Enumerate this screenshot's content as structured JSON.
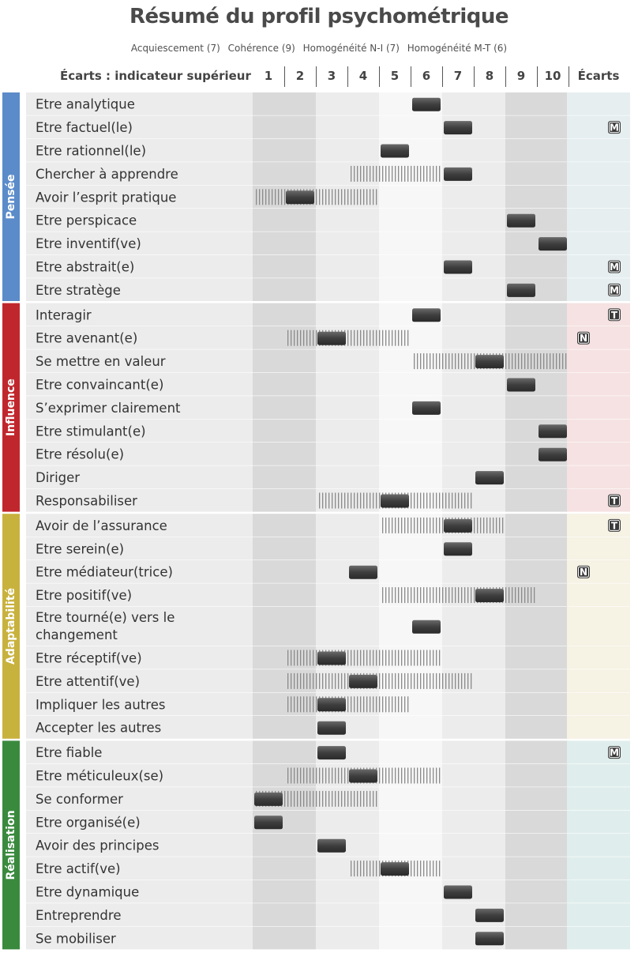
{
  "title": "Résumé du profil psychométrique",
  "indicators": [
    "Acquiescement (7)",
    "Cohérence (9)",
    "Homogénéité N-I (7)",
    "Homogénéité M-T (6)"
  ],
  "header": {
    "label": "Écarts : indicateur supérieur",
    "columns": [
      "1",
      "2",
      "3",
      "4",
      "5",
      "6",
      "7",
      "8",
      "9",
      "10"
    ],
    "ecarts": "Écarts"
  },
  "colors": {
    "Pensée": "#5b8bc9",
    "Influence": "#c0272d",
    "Adaptabilité": "#c8b23e",
    "Réalisation": "#3a8a3e",
    "ecarts_bg": {
      "Pensée": "#e6eef0",
      "Influence": "#f6e2e2",
      "Adaptabilité": "#f6f2e4",
      "Réalisation": "#dfeeec"
    }
  },
  "chart_data": {
    "type": "table",
    "title": "Résumé du profil psychométrique",
    "xlabel": "Écarts : indicateur supérieur",
    "xlim": [
      1,
      10
    ],
    "sections": [
      {
        "name": "Pensée",
        "rows": [
          {
            "label": "Etre analytique",
            "score": 6,
            "range": null,
            "flag": ""
          },
          {
            "label": "Etre factuel(le)",
            "score": 7,
            "range": null,
            "flag": "M"
          },
          {
            "label": "Etre rationnel(le)",
            "score": 5,
            "range": null,
            "flag": ""
          },
          {
            "label": "Chercher à apprendre",
            "score": 7,
            "range": [
              4,
              6
            ],
            "flag": ""
          },
          {
            "label": "Avoir l’esprit pratique",
            "score": 2,
            "range": [
              1,
              4
            ],
            "flag": ""
          },
          {
            "label": "Etre perspicace",
            "score": 9,
            "range": null,
            "flag": ""
          },
          {
            "label": "Etre inventif(ve)",
            "score": 10,
            "range": null,
            "flag": ""
          },
          {
            "label": "Etre abstrait(e)",
            "score": 7,
            "range": null,
            "flag": "M"
          },
          {
            "label": "Etre stratège",
            "score": 9,
            "range": null,
            "flag": "M"
          }
        ]
      },
      {
        "name": "Influence",
        "rows": [
          {
            "label": "Interagir",
            "score": 6,
            "range": null,
            "flag": "T"
          },
          {
            "label": "Etre avenant(e)",
            "score": 3,
            "range": [
              2,
              5
            ],
            "flag": "N"
          },
          {
            "label": "Se mettre en valeur",
            "score": 8,
            "range": [
              6,
              10
            ],
            "flag": ""
          },
          {
            "label": "Etre convaincant(e)",
            "score": 9,
            "range": null,
            "flag": ""
          },
          {
            "label": "S’exprimer clairement",
            "score": 6,
            "range": null,
            "flag": ""
          },
          {
            "label": "Etre stimulant(e)",
            "score": 10,
            "range": null,
            "flag": ""
          },
          {
            "label": "Etre résolu(e)",
            "score": 10,
            "range": null,
            "flag": ""
          },
          {
            "label": "Diriger",
            "score": 8,
            "range": null,
            "flag": ""
          },
          {
            "label": "Responsabiliser",
            "score": 5,
            "range": [
              3,
              7
            ],
            "flag": "T"
          }
        ]
      },
      {
        "name": "Adaptabilité",
        "rows": [
          {
            "label": "Avoir de l’assurance",
            "score": 7,
            "range": [
              5,
              8
            ],
            "flag": "T"
          },
          {
            "label": "Etre serein(e)",
            "score": 7,
            "range": null,
            "flag": ""
          },
          {
            "label": "Etre médiateur(trice)",
            "score": 4,
            "range": null,
            "flag": "N"
          },
          {
            "label": "Etre positif(ve)",
            "score": 8,
            "range": [
              5,
              9
            ],
            "flag": ""
          },
          {
            "label": "Etre tourné(e) vers le changement",
            "score": 6,
            "range": null,
            "flag": ""
          },
          {
            "label": "Etre réceptif(ve)",
            "score": 3,
            "range": [
              2,
              6
            ],
            "flag": ""
          },
          {
            "label": "Etre attentif(ve)",
            "score": 4,
            "range": [
              2,
              7
            ],
            "flag": ""
          },
          {
            "label": "Impliquer les autres",
            "score": 3,
            "range": [
              2,
              5
            ],
            "flag": ""
          },
          {
            "label": "Accepter les autres",
            "score": 3,
            "range": null,
            "flag": ""
          }
        ]
      },
      {
        "name": "Réalisation",
        "rows": [
          {
            "label": "Etre fiable",
            "score": 3,
            "range": null,
            "flag": "M"
          },
          {
            "label": "Etre méticuleux(se)",
            "score": 4,
            "range": [
              2,
              6
            ],
            "flag": ""
          },
          {
            "label": "Se conformer",
            "score": 1,
            "range": [
              1,
              4
            ],
            "flag": ""
          },
          {
            "label": "Etre organisé(e)",
            "score": 1,
            "range": null,
            "flag": ""
          },
          {
            "label": "Avoir des principes",
            "score": 3,
            "range": null,
            "flag": ""
          },
          {
            "label": "Etre actif(ve)",
            "score": 5,
            "range": [
              4,
              6
            ],
            "flag": ""
          },
          {
            "label": "Etre dynamique",
            "score": 7,
            "range": null,
            "flag": ""
          },
          {
            "label": "Entreprendre",
            "score": 8,
            "range": null,
            "flag": ""
          },
          {
            "label": "Se mobiliser",
            "score": 8,
            "range": null,
            "flag": ""
          }
        ]
      }
    ]
  }
}
